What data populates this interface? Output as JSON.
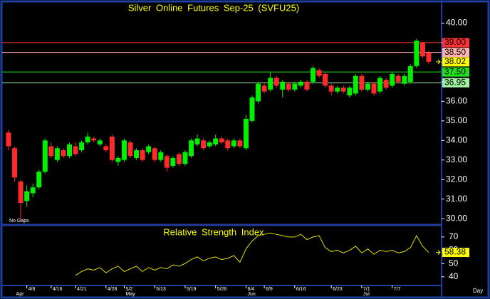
{
  "chart_data": [
    {
      "type": "candlestick",
      "title": "Silver Online Futures Sep-25 (SVFU25)",
      "note": "No Gaps",
      "x_unit": "Day",
      "categories": [
        null,
        null,
        null,
        "4/8",
        null,
        null,
        null,
        "4/16",
        null,
        null,
        null,
        "4/21",
        null,
        null,
        null,
        null,
        "4/28",
        null,
        null,
        "5/2",
        null,
        null,
        null,
        null,
        "5/13",
        null,
        null,
        null,
        null,
        "5/19",
        null,
        null,
        null,
        null,
        "5/26",
        null,
        null,
        null,
        null,
        "6/4",
        null,
        null,
        "6/9",
        null,
        null,
        null,
        null,
        "6/16",
        null,
        null,
        null,
        null,
        null,
        "6/23",
        null,
        null,
        null,
        null,
        "7/1",
        null,
        null,
        null,
        null,
        "7/7",
        null,
        null,
        null,
        null,
        null,
        null
      ],
      "months": [
        null,
        "Apr",
        null,
        null,
        null,
        null,
        null,
        null,
        null,
        null,
        null,
        null,
        null,
        null,
        null,
        null,
        null,
        null,
        null,
        "May",
        null,
        null,
        null,
        null,
        null,
        null,
        null,
        null,
        null,
        null,
        null,
        null,
        null,
        null,
        null,
        null,
        null,
        null,
        null,
        "Jun",
        null,
        null,
        null,
        null,
        null,
        null,
        null,
        null,
        null,
        null,
        null,
        null,
        null,
        null,
        null,
        null,
        null,
        null,
        "Jul",
        null,
        null,
        null,
        null,
        null,
        null,
        null,
        null,
        null,
        null,
        null
      ],
      "open": [
        34.4,
        33.6,
        31.9,
        30.9,
        31.3,
        31.6,
        32.4,
        33.7,
        33.0,
        33.5,
        33.2,
        33.7,
        33.5,
        33.9,
        34.1,
        33.8,
        33.7,
        34.2,
        32.9,
        33.0,
        33.9,
        33.1,
        33.5,
        33.4,
        33.6,
        33.0,
        33.2,
        32.7,
        33.3,
        32.8,
        33.2,
        33.8,
        34.0,
        33.7,
        33.8,
        34.1,
        34.0,
        33.7,
        34.0,
        33.6,
        35.0,
        36.0,
        36.8,
        36.6,
        37.2,
        36.6,
        36.9,
        36.6,
        36.8,
        37.0,
        37.0,
        37.6,
        37.4,
        36.8,
        36.5,
        36.7,
        36.3,
        36.4,
        37.3,
        36.6,
        36.9,
        36.5,
        37.1,
        36.8,
        37.3,
        36.9,
        37.0,
        37.8,
        39.0,
        38.5
      ],
      "high": [
        34.55,
        33.7,
        32.0,
        31.7,
        31.8,
        32.5,
        34.1,
        33.9,
        33.7,
        33.6,
        33.9,
        33.9,
        34.0,
        34.4,
        34.2,
        34.1,
        33.8,
        34.3,
        33.2,
        34.1,
        34.0,
        33.6,
        33.6,
        33.8,
        33.7,
        33.5,
        33.3,
        33.2,
        33.4,
        33.5,
        34.1,
        34.3,
        34.1,
        34.0,
        34.3,
        34.2,
        34.1,
        34.1,
        34.1,
        35.3,
        36.3,
        37.0,
        37.0,
        37.5,
        37.3,
        37.1,
        37.0,
        37.0,
        37.1,
        37.1,
        37.8,
        37.7,
        37.5,
        36.9,
        36.8,
        36.8,
        36.8,
        37.4,
        37.4,
        37.0,
        37.0,
        37.3,
        37.2,
        37.5,
        37.4,
        37.4,
        37.9,
        39.2,
        39.05,
        38.6
      ],
      "low": [
        33.5,
        31.9,
        29.9,
        30.6,
        31.1,
        31.5,
        32.3,
        33.1,
        32.9,
        33.1,
        33.1,
        33.2,
        33.4,
        33.8,
        33.9,
        33.7,
        33.4,
        32.9,
        32.7,
        32.9,
        33.1,
        33.0,
        32.9,
        33.3,
        32.9,
        32.9,
        32.4,
        32.6,
        32.7,
        32.7,
        33.1,
        33.7,
        33.5,
        33.6,
        33.7,
        33.8,
        33.5,
        33.6,
        33.6,
        33.5,
        34.9,
        35.9,
        36.4,
        36.5,
        36.7,
        36.2,
        36.5,
        36.5,
        36.7,
        36.5,
        36.9,
        37.2,
        36.7,
        36.3,
        36.4,
        36.4,
        36.2,
        36.3,
        36.5,
        36.5,
        36.3,
        36.4,
        36.6,
        36.7,
        36.9,
        36.8,
        36.9,
        37.7,
        38.2,
        37.9
      ],
      "close": [
        33.7,
        32.1,
        30.8,
        31.4,
        31.6,
        32.4,
        34.0,
        33.2,
        33.6,
        33.2,
        33.8,
        33.3,
        33.9,
        34.2,
        34.0,
        34.0,
        33.5,
        33.0,
        33.1,
        34.0,
        33.2,
        33.5,
        33.0,
        33.7,
        33.0,
        33.4,
        32.6,
        33.1,
        32.8,
        33.4,
        34.0,
        34.1,
        33.6,
        33.9,
        34.1,
        33.9,
        33.6,
        34.0,
        33.7,
        35.1,
        36.2,
        36.9,
        36.5,
        37.2,
        36.8,
        37.0,
        36.6,
        36.9,
        37.0,
        36.6,
        37.7,
        37.3,
        36.8,
        36.5,
        36.7,
        36.5,
        36.7,
        37.3,
        36.6,
        36.9,
        36.4,
        37.2,
        36.7,
        37.4,
        37.0,
        37.3,
        37.8,
        39.1,
        38.3,
        38.02
      ],
      "up_color": "#00f000",
      "down_color": "#ff2a2a",
      "ylim": [
        29.75,
        41.0
      ],
      "yticks": [
        {
          "value": 30,
          "label": "30.00"
        },
        {
          "value": 31,
          "label": "31.00"
        },
        {
          "value": 32,
          "label": "32.00"
        },
        {
          "value": 33,
          "label": "33.00"
        },
        {
          "value": 34,
          "label": "34.00"
        },
        {
          "value": 35,
          "label": "35.00"
        },
        {
          "value": 36,
          "label": "36.00"
        },
        {
          "value": 37,
          "label": "37.00"
        },
        {
          "value": 38,
          "label": "38.00"
        },
        {
          "value": 39,
          "label": "39.00"
        },
        {
          "value": 40,
          "label": "40.00"
        }
      ],
      "price_lines": [
        {
          "value": 39.0,
          "label": "39.00",
          "color": "#ff3030",
          "line": true
        },
        {
          "value": 38.5,
          "label": "38.50",
          "color": "#ffb0b0",
          "line": true
        },
        {
          "value": 38.02,
          "label": "38.02",
          "color": "#ffff00",
          "line": false
        },
        {
          "value": 37.5,
          "label": "37.50",
          "color": "#20e020",
          "line": true
        },
        {
          "value": 36.95,
          "label": "36.95",
          "color": "#a0f0a0",
          "line": true
        }
      ]
    },
    {
      "type": "line",
      "title": "Relative Strength Index",
      "values": [
        null,
        null,
        null,
        null,
        null,
        null,
        null,
        null,
        null,
        null,
        null,
        41,
        44,
        46,
        45,
        47,
        43,
        46,
        48,
        44,
        46,
        48,
        44,
        47,
        45,
        47,
        46,
        49,
        48,
        50,
        53,
        55,
        52,
        54,
        55,
        53,
        54,
        56,
        51,
        61,
        67,
        71,
        72,
        73,
        72,
        71,
        70,
        70,
        72,
        68,
        70,
        71,
        62,
        59,
        60,
        58,
        60,
        63,
        58,
        61,
        57,
        60,
        59,
        60,
        58,
        59,
        62,
        71,
        63,
        58.38
      ],
      "value_labels": {
        "69": "58.38"
      },
      "color": "#e0e000",
      "label_color": "#ffff00",
      "ylim": [
        34,
        78
      ],
      "yticks": [
        40,
        50,
        60,
        70
      ]
    }
  ]
}
